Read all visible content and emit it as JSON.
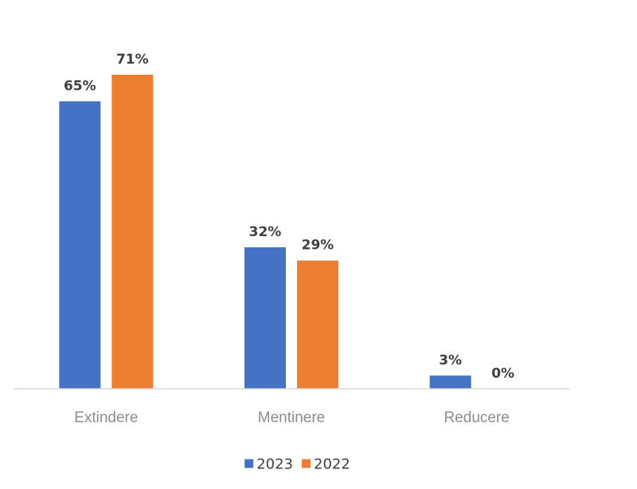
{
  "chart_data": {
    "type": "bar",
    "categories": [
      "Extindere",
      "Mentinere",
      "Reducere"
    ],
    "series": [
      {
        "name": "2023",
        "values": [
          65,
          32,
          3
        ],
        "labels": [
          "65%",
          "32%",
          "3%"
        ],
        "color": "#4472c4"
      },
      {
        "name": "2022",
        "values": [
          71,
          29,
          0
        ],
        "labels": [
          "71%",
          "29%",
          "0%"
        ],
        "color": "#ed7d31"
      }
    ],
    "title": "",
    "xlabel": "",
    "ylabel": "",
    "ylim": [
      0,
      71
    ],
    "grid": false,
    "legend_position": "bottom",
    "value_format": "percent"
  }
}
